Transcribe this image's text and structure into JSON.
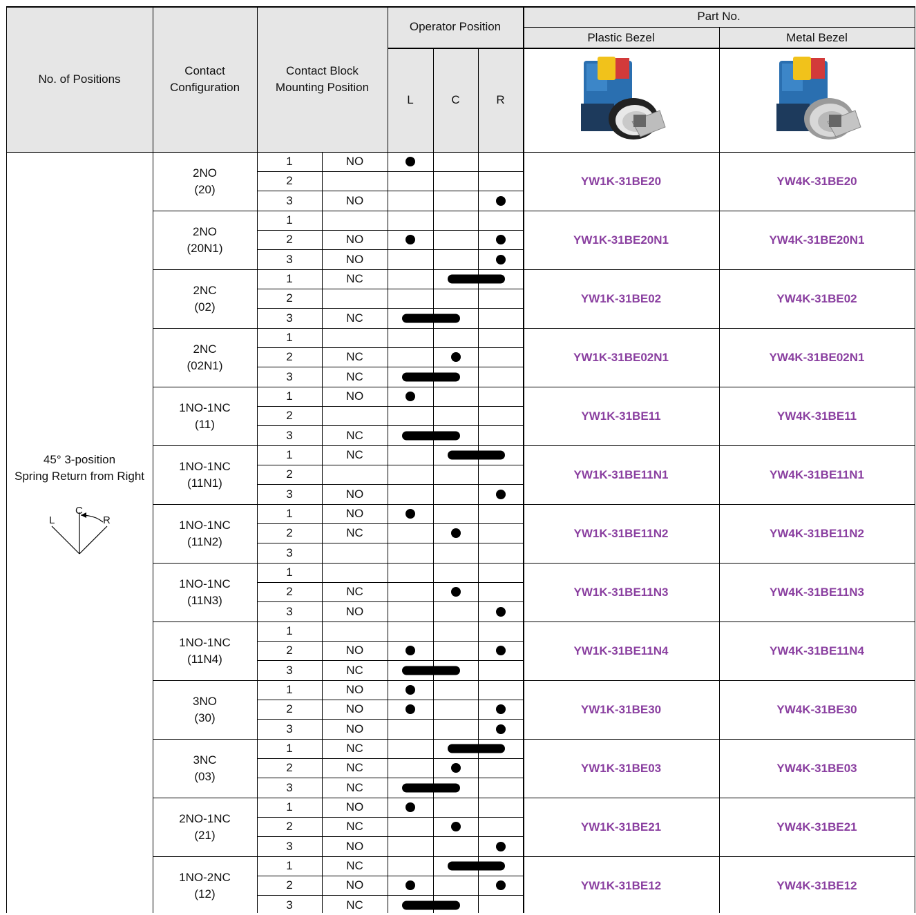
{
  "header": {
    "no_of_positions": "No. of Positions",
    "contact_configuration": "Contact\nConfiguration",
    "contact_block_mounting_position": "Contact Block\nMounting Position",
    "operator_position": "Operator Position",
    "operator_L": "L",
    "operator_C": "C",
    "operator_R": "R",
    "part_no": "Part No.",
    "plastic_bezel": "Plastic Bezel",
    "metal_bezel": "Metal Bezel"
  },
  "switch_type": {
    "label": "45° 3-position\nSpring Return from Right",
    "diagram_L": "L",
    "diagram_C": "C",
    "diagram_R": "R"
  },
  "groups": [
    {
      "config": "2NO\n(20)",
      "plastic": "YW1K-31BE20",
      "metal": "YW4K-31BE20",
      "rows": [
        {
          "pos": "1",
          "type": "NO",
          "marks": [
            "L"
          ]
        },
        {
          "pos": "2",
          "type": "",
          "marks": []
        },
        {
          "pos": "3",
          "type": "NO",
          "marks": [
            "R"
          ]
        }
      ]
    },
    {
      "config": "2NO\n(20N1)",
      "plastic": "YW1K-31BE20N1",
      "metal": "YW4K-31BE20N1",
      "rows": [
        {
          "pos": "1",
          "type": "",
          "marks": []
        },
        {
          "pos": "2",
          "type": "NO",
          "marks": [
            "L",
            "R"
          ]
        },
        {
          "pos": "3",
          "type": "NO",
          "marks": [
            "R"
          ]
        }
      ]
    },
    {
      "config": "2NC\n(02)",
      "plastic": "YW1K-31BE02",
      "metal": "YW4K-31BE02",
      "rows": [
        {
          "pos": "1",
          "type": "NC",
          "marks": [
            "CR"
          ]
        },
        {
          "pos": "2",
          "type": "",
          "marks": []
        },
        {
          "pos": "3",
          "type": "NC",
          "marks": [
            "LC"
          ]
        }
      ]
    },
    {
      "config": "2NC\n(02N1)",
      "plastic": "YW1K-31BE02N1",
      "metal": "YW4K-31BE02N1",
      "rows": [
        {
          "pos": "1",
          "type": "",
          "marks": []
        },
        {
          "pos": "2",
          "type": "NC",
          "marks": [
            "C"
          ]
        },
        {
          "pos": "3",
          "type": "NC",
          "marks": [
            "LC"
          ]
        }
      ]
    },
    {
      "config": "1NO-1NC\n(11)",
      "plastic": "YW1K-31BE11",
      "metal": "YW4K-31BE11",
      "rows": [
        {
          "pos": "1",
          "type": "NO",
          "marks": [
            "L"
          ]
        },
        {
          "pos": "2",
          "type": "",
          "marks": []
        },
        {
          "pos": "3",
          "type": "NC",
          "marks": [
            "LC"
          ]
        }
      ]
    },
    {
      "config": "1NO-1NC\n(11N1)",
      "plastic": "YW1K-31BE11N1",
      "metal": "YW4K-31BE11N1",
      "rows": [
        {
          "pos": "1",
          "type": "NC",
          "marks": [
            "CR"
          ]
        },
        {
          "pos": "2",
          "type": "",
          "marks": []
        },
        {
          "pos": "3",
          "type": "NO",
          "marks": [
            "R"
          ]
        }
      ]
    },
    {
      "config": "1NO-1NC\n(11N2)",
      "plastic": "YW1K-31BE11N2",
      "metal": "YW4K-31BE11N2",
      "rows": [
        {
          "pos": "1",
          "type": "NO",
          "marks": [
            "L"
          ]
        },
        {
          "pos": "2",
          "type": "NC",
          "marks": [
            "C"
          ]
        },
        {
          "pos": "3",
          "type": "",
          "marks": []
        }
      ]
    },
    {
      "config": "1NO-1NC\n(11N3)",
      "plastic": "YW1K-31BE11N3",
      "metal": "YW4K-31BE11N3",
      "rows": [
        {
          "pos": "1",
          "type": "",
          "marks": []
        },
        {
          "pos": "2",
          "type": "NC",
          "marks": [
            "C"
          ]
        },
        {
          "pos": "3",
          "type": "NO",
          "marks": [
            "R"
          ]
        }
      ]
    },
    {
      "config": "1NO-1NC\n(11N4)",
      "plastic": "YW1K-31BE11N4",
      "metal": "YW4K-31BE11N4",
      "rows": [
        {
          "pos": "1",
          "type": "",
          "marks": []
        },
        {
          "pos": "2",
          "type": "NO",
          "marks": [
            "L",
            "R"
          ]
        },
        {
          "pos": "3",
          "type": "NC",
          "marks": [
            "LC"
          ]
        }
      ]
    },
    {
      "config": "3NO\n(30)",
      "plastic": "YW1K-31BE30",
      "metal": "YW4K-31BE30",
      "rows": [
        {
          "pos": "1",
          "type": "NO",
          "marks": [
            "L"
          ]
        },
        {
          "pos": "2",
          "type": "NO",
          "marks": [
            "L",
            "R"
          ]
        },
        {
          "pos": "3",
          "type": "NO",
          "marks": [
            "R"
          ]
        }
      ]
    },
    {
      "config": "3NC\n(03)",
      "plastic": "YW1K-31BE03",
      "metal": "YW4K-31BE03",
      "rows": [
        {
          "pos": "1",
          "type": "NC",
          "marks": [
            "CR"
          ]
        },
        {
          "pos": "2",
          "type": "NC",
          "marks": [
            "C"
          ]
        },
        {
          "pos": "3",
          "type": "NC",
          "marks": [
            "LC"
          ]
        }
      ]
    },
    {
      "config": "2NO-1NC\n(21)",
      "plastic": "YW1K-31BE21",
      "metal": "YW4K-31BE21",
      "rows": [
        {
          "pos": "1",
          "type": "NO",
          "marks": [
            "L"
          ]
        },
        {
          "pos": "2",
          "type": "NC",
          "marks": [
            "C"
          ]
        },
        {
          "pos": "3",
          "type": "NO",
          "marks": [
            "R"
          ]
        }
      ]
    },
    {
      "config": "1NO-2NC\n(12)",
      "plastic": "YW1K-31BE12",
      "metal": "YW4K-31BE12",
      "rows": [
        {
          "pos": "1",
          "type": "NC",
          "marks": [
            "CR"
          ]
        },
        {
          "pos": "2",
          "type": "NO",
          "marks": [
            "L",
            "R"
          ]
        },
        {
          "pos": "3",
          "type": "NC",
          "marks": [
            "LC"
          ]
        }
      ]
    }
  ],
  "colors": {
    "header_bg": "#e6e6e6",
    "part_number": "#8a3fa0",
    "grid": "#000000"
  },
  "icons": {
    "plastic_bezel_image": "selector-switch-plastic-bezel-photo",
    "metal_bezel_image": "selector-switch-metal-bezel-photo",
    "position_diagram": "three-position-switch-diagram"
  }
}
